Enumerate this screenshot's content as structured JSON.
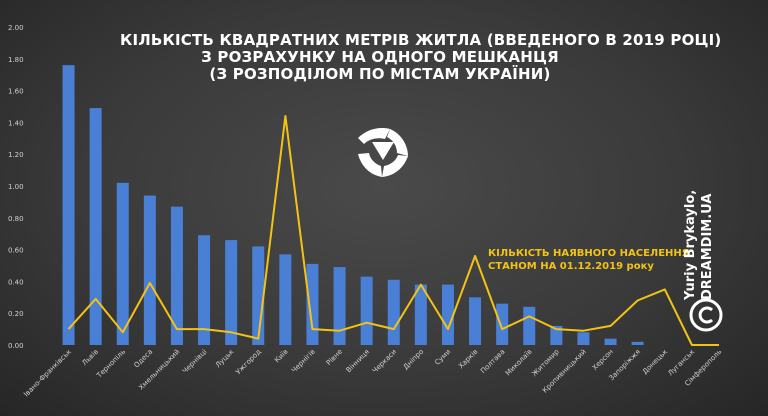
{
  "title_lines": [
    "КІЛЬКІСТЬ КВАДРАТНИХ МЕТРІВ ЖИТЛА (ВВЕДЕНОГО В 2019 РОЦІ)",
    "З РОЗРАХУНКУ НА ОДНОГО МЕШКАНЦЯ",
    "(З РОЗПОДІЛОМ ПО МІСТАМ УКРАЇНИ)"
  ],
  "population_label": {
    "line1": "КІЛЬКІСТЬ НАЯВНОГО НАСЕЛЕННЯ",
    "line2": "СТАНОМ НА 01.12.2019 року"
  },
  "author": {
    "line1": "Yuriy Brykaylo,",
    "line2": "DREAMDIM.UA"
  },
  "icons": [
    "logo-icon",
    "copyright-icon"
  ],
  "colors": {
    "bar": "#4a7fd6",
    "line": "#f2c315",
    "text": "#ffffff",
    "axis_text": "#d0d0d0"
  },
  "chart_data": {
    "type": "bar",
    "categories": [
      "Івано-Франківськ",
      "Львів",
      "Тернопіль",
      "Одеса",
      "Хмельницький",
      "Чернівці",
      "Луцьк",
      "Ужгород",
      "Київ",
      "Чернігів",
      "Рівне",
      "Вінниця",
      "Черкаси",
      "Дніпро",
      "Суми",
      "Харків",
      "Полтава",
      "Миколаїв",
      "Житомир",
      "Кропивницький",
      "Херсон",
      "Запоріжжя",
      "Донецьк",
      "Луганськ",
      "Сімферополь"
    ],
    "series": [
      {
        "type": "bar",
        "values": [
          1.76,
          1.49,
          1.02,
          0.94,
          0.87,
          0.69,
          0.66,
          0.62,
          0.57,
          0.51,
          0.49,
          0.43,
          0.41,
          0.38,
          0.38,
          0.3,
          0.26,
          0.24,
          0.12,
          0.08,
          0.04,
          0.02,
          0.0,
          0.0,
          0.0
        ]
      },
      {
        "type": "line",
        "values": [
          0.1,
          0.29,
          0.08,
          0.39,
          0.1,
          0.1,
          0.08,
          0.04,
          1.44,
          0.1,
          0.09,
          0.14,
          0.1,
          0.38,
          0.1,
          0.56,
          0.1,
          0.18,
          0.1,
          0.09,
          0.12,
          0.28,
          0.35,
          0.0,
          0.0
        ]
      }
    ],
    "ylim": [
      0,
      2.0
    ],
    "yticks": [
      "0.00",
      "0.20",
      "0.40",
      "0.60",
      "0.80",
      "1.00",
      "1.20",
      "1.40",
      "1.60",
      "1.80",
      "2.00"
    ],
    "grid": false
  }
}
